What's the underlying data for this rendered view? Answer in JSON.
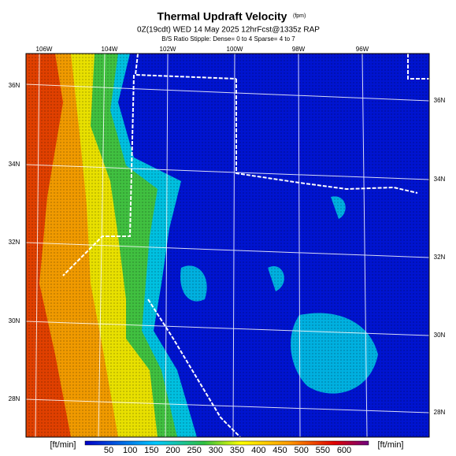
{
  "header": {
    "title": "Thermal Updraft Velocity",
    "title_units": "(fpm)",
    "subtitle": "0Z(19cdt) WED 14 May 2025 12hrFcst@1335z RAP",
    "note": "B/S Ratio Stipple: Dense= 0 to 4 Sparse= 4 to 7"
  },
  "map": {
    "longitude_labels": [
      "106W",
      "104W",
      "102W",
      "100W",
      "98W",
      "96W"
    ],
    "latitude_labels_left": [
      "36N",
      "34N",
      "32N",
      "30N",
      "28N"
    ],
    "latitude_labels_right": [
      "36N",
      "34N",
      "32N",
      "30N",
      "28N"
    ]
  },
  "colorbar": {
    "unit_left": "[ft/min]",
    "unit_right": "[ft/min]",
    "ticks": [
      "50",
      "100",
      "150",
      "200",
      "250",
      "300",
      "350",
      "400",
      "450",
      "500",
      "550",
      "600"
    ]
  }
}
